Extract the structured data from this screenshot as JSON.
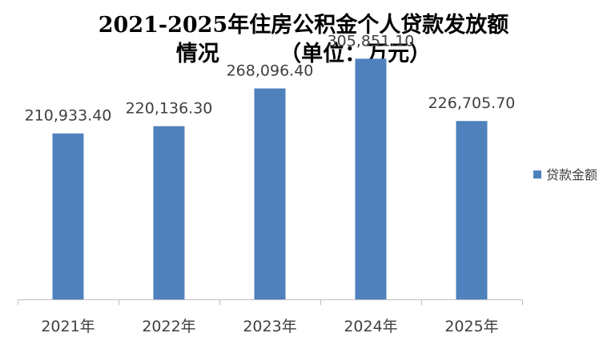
{
  "chart_data": {
    "type": "bar",
    "title_line1": "2021-2025年住房公积金个人贷款发放额",
    "title_line2": "情况        （单位：万元）",
    "categories": [
      "2021年",
      "2022年",
      "2023年",
      "2024年",
      "2025年"
    ],
    "series": [
      {
        "name": "贷款金额",
        "values": [
          210933.4,
          220136.3,
          268096.4,
          305851.1,
          226705.7
        ],
        "labels": [
          "210,933.40",
          "220,136.30",
          "268,096.40",
          "305,851.10",
          "226,705.70"
        ]
      }
    ],
    "ylim": [
      0,
      350000
    ],
    "grid": false,
    "legend_position": "right"
  },
  "colors": {
    "bar": "#4F81BD",
    "axis": "#BFBFBF",
    "label_text": "#404040"
  }
}
